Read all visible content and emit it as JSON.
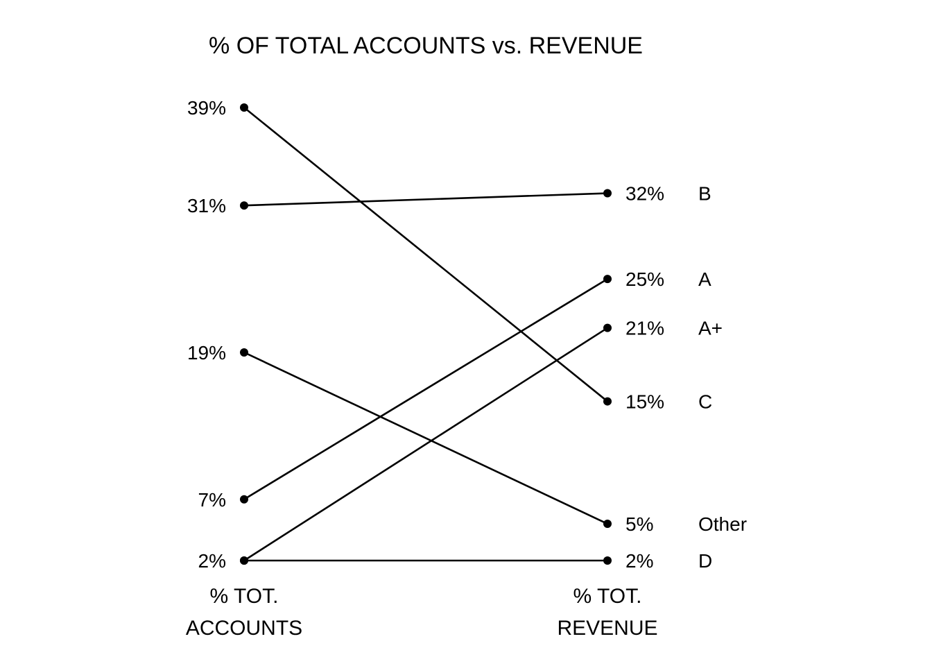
{
  "chart_data": {
    "type": "slope",
    "title": "% OF TOTAL ACCOUNTS vs. REVENUE",
    "left_axis_label": [
      "% TOT.",
      "ACCOUNTS"
    ],
    "right_axis_label": [
      "% TOT.",
      "REVENUE"
    ],
    "unit": "%",
    "series": [
      {
        "name": "B",
        "accounts": 31,
        "revenue": 32
      },
      {
        "name": "A",
        "accounts": 7,
        "revenue": 25
      },
      {
        "name": "A+",
        "accounts": 2,
        "revenue": 21
      },
      {
        "name": "C",
        "accounts": 39,
        "revenue": 15
      },
      {
        "name": "Other",
        "accounts": 19,
        "revenue": 5
      },
      {
        "name": "D",
        "accounts": 2,
        "revenue": 2
      }
    ],
    "color": "#000000"
  }
}
